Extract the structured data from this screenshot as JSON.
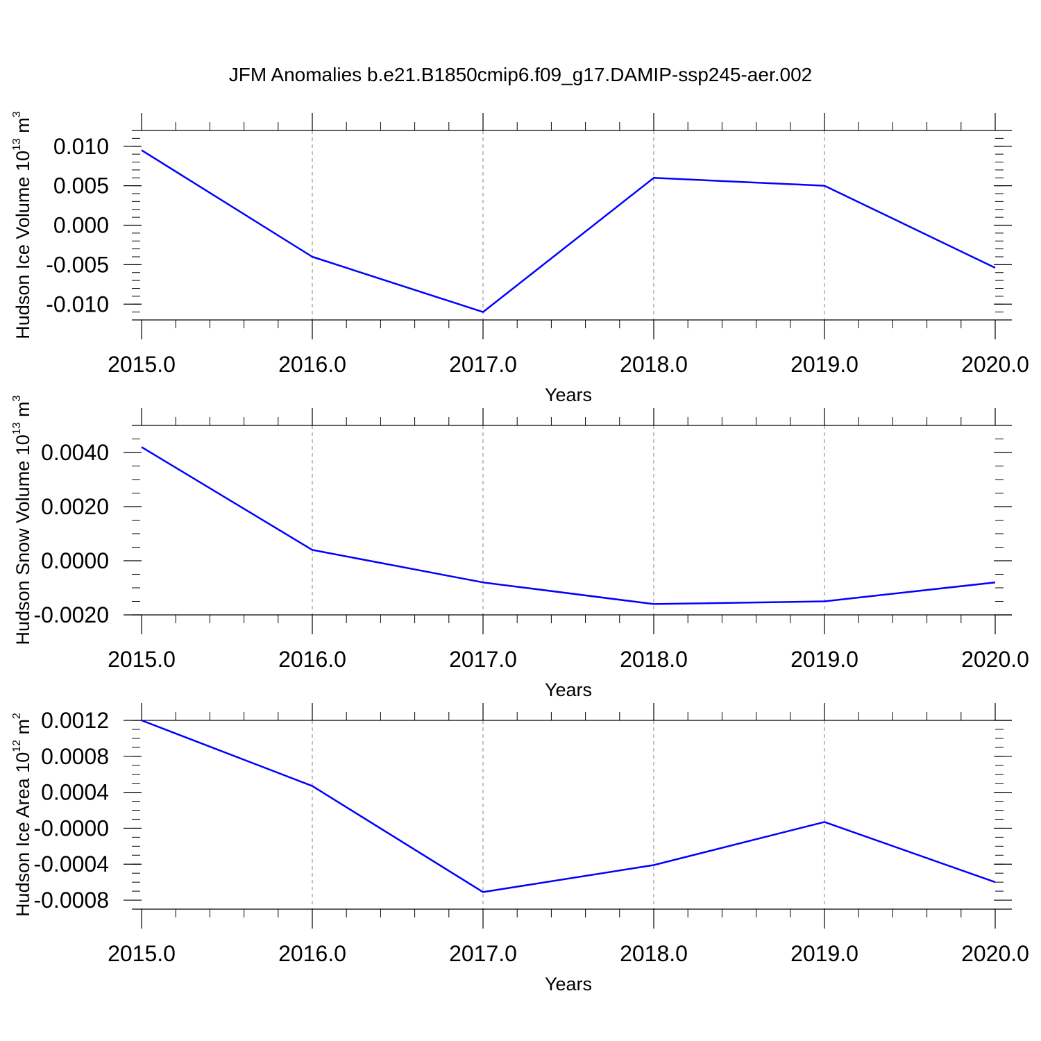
{
  "title": "JFM Anomalies b.e21.B1850cmip6.f09_g17.DAMIP-ssp245-aer.002",
  "colors": {
    "series": "#0000ff",
    "frame": "#000000",
    "grid": "#808080",
    "background": "#ffffff"
  },
  "chart_data": [
    {
      "type": "line",
      "ylabel_main": "Hudson Ice Volume 10",
      "ylabel_exp": "13",
      "ylabel_unit": " m",
      "ylabel_unit_exp": "3",
      "xlabel": "Years",
      "x": [
        2015,
        2016,
        2017,
        2018,
        2019,
        2020
      ],
      "xticks": [
        "2015.0",
        "2016.0",
        "2017.0",
        "2018.0",
        "2019.0",
        "2020.0"
      ],
      "values": [
        0.0095,
        -0.004,
        -0.011,
        0.006,
        0.005,
        -0.0054
      ],
      "xlim": [
        2015,
        2020
      ],
      "ylim": [
        -0.012,
        0.012
      ],
      "yticks": [
        0.01,
        0.005,
        0.0,
        -0.005,
        -0.01
      ],
      "ytick_labels": [
        "0.010",
        "0.005",
        "0.000",
        "-0.005",
        "-0.010"
      ],
      "yminor_step": 0.001,
      "grid": "vertical dashed at major x ticks"
    },
    {
      "type": "line",
      "ylabel_main": "Hudson Snow Volume 10",
      "ylabel_exp": "13",
      "ylabel_unit": " m",
      "ylabel_unit_exp": "3",
      "xlabel": "Years",
      "x": [
        2015,
        2016,
        2017,
        2018,
        2019,
        2020
      ],
      "xticks": [
        "2015.0",
        "2016.0",
        "2017.0",
        "2018.0",
        "2019.0",
        "2020.0"
      ],
      "values": [
        0.0042,
        0.0004,
        -0.0008,
        -0.0016,
        -0.0015,
        -0.0008
      ],
      "xlim": [
        2015,
        2020
      ],
      "ylim": [
        -0.002,
        0.005
      ],
      "yticks": [
        0.004,
        0.002,
        0.0,
        -0.002
      ],
      "ytick_labels": [
        "0.0040",
        "0.0020",
        "0.0000",
        "-0.0020"
      ],
      "yminor_step": 0.0005,
      "grid": "vertical dashed at major x ticks"
    },
    {
      "type": "line",
      "ylabel_main": "Hudson Ice Area 10",
      "ylabel_exp": "12",
      "ylabel_unit": " m",
      "ylabel_unit_exp": "2",
      "xlabel": "Years",
      "x": [
        2015,
        2016,
        2017,
        2018,
        2019,
        2020
      ],
      "xticks": [
        "2015.0",
        "2016.0",
        "2017.0",
        "2018.0",
        "2019.0",
        "2020.0"
      ],
      "values": [
        0.0012,
        0.00047,
        -0.00071,
        -0.00041,
        7e-05,
        -0.0006
      ],
      "xlim": [
        2015,
        2020
      ],
      "ylim": [
        -0.0009,
        0.0012
      ],
      "yticks": [
        0.0012,
        0.0008,
        0.0004,
        0.0,
        -0.0004,
        -0.0008
      ],
      "ytick_labels": [
        "0.0012",
        "0.0008",
        "0.0004",
        "-0.0000",
        "-0.0004",
        "-0.0008"
      ],
      "yminor_step": 0.0001,
      "grid": "vertical dashed at major x ticks"
    }
  ]
}
